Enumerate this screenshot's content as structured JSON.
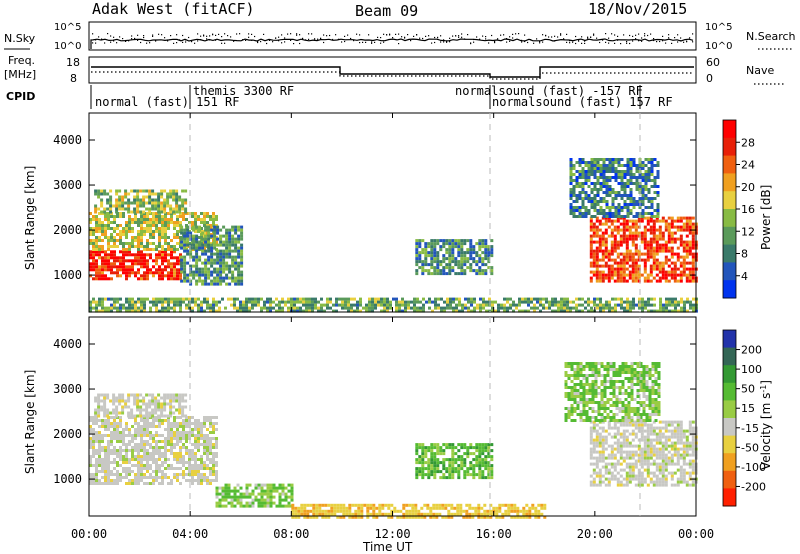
{
  "header": {
    "radar": "Adak West (fitACF)",
    "beam": "Beam 09",
    "date": "18/Nov/2015"
  },
  "top_panels": {
    "nsky_label": "N.Sky",
    "nsky_ticks": [
      "10^5",
      "10^0"
    ],
    "nsearch_label": "N.Search",
    "nsearch_ticks": [
      "10^5",
      "10^0"
    ],
    "freq_label_line1": "Freq.",
    "freq_label_line2": "[MHz]",
    "freq_ticks": [
      "18",
      "8"
    ],
    "nave_label": "Nave",
    "nave_ticks": [
      "60",
      "0"
    ],
    "cpid_label": "CPID",
    "cpid_entries": [
      "normal (fast) 151 RF",
      "themis 3300 RF",
      "normalsound (fast) -157 RF",
      "normalsound (fast) 157 RF"
    ]
  },
  "panels": {
    "ylabel": "Slant Range [km]",
    "yticks": [
      "4000",
      "3000",
      "2000",
      "1000"
    ],
    "xlabel": "Time UT",
    "xticks": [
      "00:00",
      "04:00",
      "08:00",
      "12:00",
      "16:00",
      "20:00",
      "00:00"
    ]
  },
  "power_colorbar": {
    "label": "Power [dB]",
    "ticks": [
      "28",
      "24",
      "20",
      "16",
      "12",
      "8",
      "4"
    ],
    "colors": [
      "#0033ee",
      "#2255bb",
      "#3a7a6a",
      "#5a9a5a",
      "#88bb44",
      "#e8d040",
      "#f0a020",
      "#f06010",
      "#e82008",
      "#ff0000"
    ]
  },
  "velocity_colorbar": {
    "label": "Velocity [m s^-1]",
    "ticks": [
      "200",
      "100",
      "50",
      "15",
      "-15",
      "-50",
      "-100",
      "-200"
    ],
    "colors": [
      "#2233aa",
      "#336655",
      "#339933",
      "#55bb33",
      "#99cc44",
      "#c8c8c4",
      "#e8d040",
      "#f0a020",
      "#f06010",
      "#ff2000"
    ]
  },
  "chart_data": [
    {
      "type": "heatmap",
      "title": "Power",
      "x": [
        "00:00",
        "04:00",
        "08:00",
        "12:00",
        "16:00",
        "20:00",
        "00:00"
      ],
      "xlabel": "Time UT",
      "ylabel": "Slant Range [km]",
      "ylim": [
        180,
        4600
      ],
      "colorbar": "Power [dB]",
      "crange": [
        0,
        32
      ],
      "regions": [
        {
          "t0": 0.0,
          "t1": 3.6,
          "r0": 900,
          "r1": 1550,
          "value": 28
        },
        {
          "t0": 0.0,
          "t1": 5.0,
          "r0": 1550,
          "r1": 2400,
          "value": 16
        },
        {
          "t0": 0.2,
          "t1": 3.8,
          "r0": 2400,
          "r1": 2900,
          "value": 14
        },
        {
          "t0": 3.6,
          "t1": 6.0,
          "r0": 800,
          "r1": 2100,
          "value": 10
        },
        {
          "t0": 12.9,
          "t1": 15.9,
          "r0": 1050,
          "r1": 1800,
          "value": 10
        },
        {
          "t0": 19.8,
          "t1": 24.0,
          "r0": 900,
          "r1": 2300,
          "value": 26
        },
        {
          "t0": 19.0,
          "t1": 22.5,
          "r0": 2300,
          "r1": 3600,
          "value": 8
        },
        {
          "t0": 0.0,
          "t1": 24.0,
          "r0": 200,
          "r1": 500,
          "value": 12
        }
      ]
    },
    {
      "type": "heatmap",
      "title": "Velocity",
      "x": [
        "00:00",
        "04:00",
        "08:00",
        "12:00",
        "16:00",
        "20:00",
        "00:00"
      ],
      "xlabel": "Time UT",
      "ylabel": "Slant Range [km]",
      "ylim": [
        180,
        4600
      ],
      "colorbar": "Velocity [m s^-1]",
      "crange": [
        -250,
        250
      ],
      "regions": [
        {
          "t0": 0.0,
          "t1": 5.0,
          "r0": 900,
          "r1": 2400,
          "value": 0
        },
        {
          "t0": 0.2,
          "t1": 3.8,
          "r0": 2400,
          "r1": 2900,
          "value": 0
        },
        {
          "t0": 5.0,
          "t1": 8.0,
          "r0": 400,
          "r1": 900,
          "value": 30
        },
        {
          "t0": 12.9,
          "t1": 15.9,
          "r0": 1050,
          "r1": 1800,
          "value": 40
        },
        {
          "t0": 8.0,
          "t1": 18.0,
          "r0": 180,
          "r1": 450,
          "value": -40
        },
        {
          "t0": 19.8,
          "t1": 24.0,
          "r0": 900,
          "r1": 2300,
          "value": 0
        },
        {
          "t0": 18.8,
          "t1": 22.5,
          "r0": 2300,
          "r1": 3600,
          "value": 30
        }
      ]
    }
  ]
}
